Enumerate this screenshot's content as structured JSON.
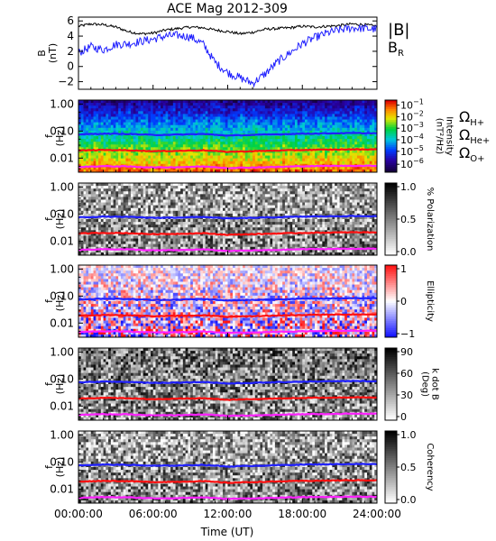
{
  "chart_data": {
    "title": "ACE Mag 2012-309",
    "xlabel": "Time (UT)",
    "x_ticks": [
      "00:00:00",
      "06:00:00",
      "12:00:00",
      "18:00:00",
      "24:00:00"
    ],
    "x_range_hours": [
      0,
      24
    ],
    "panels": [
      {
        "type": "line",
        "ylabel_lines": [
          "B",
          "(nT)"
        ],
        "ylim": [
          -3,
          6.5
        ],
        "y_ticks": [
          -2,
          0,
          2,
          4,
          6
        ],
        "legend": [
          {
            "label": "|B|",
            "color": "#000000"
          },
          {
            "label": "B",
            "sub": "R",
            "color": "#2020ff"
          }
        ],
        "series": [
          {
            "name": "|B|",
            "color": "#000000",
            "x": [
              0,
              1,
              2,
              3,
              4,
              5,
              6,
              7,
              8,
              9,
              10,
              11,
              12,
              13,
              14,
              15,
              16,
              17,
              18,
              19,
              20,
              21,
              22,
              23,
              24
            ],
            "y": [
              5.3,
              5.6,
              5.5,
              5.2,
              4.6,
              4.3,
              4.4,
              4.8,
              5.0,
              5.2,
              5.1,
              4.8,
              4.6,
              4.3,
              4.5,
              4.9,
              5.0,
              5.1,
              5.3,
              5.2,
              5.3,
              5.4,
              5.6,
              5.5,
              5.3
            ]
          },
          {
            "name": "B_R",
            "color": "#2020ff",
            "x": [
              0,
              1,
              2,
              3,
              4,
              5,
              6,
              7,
              8,
              9,
              10,
              11,
              12,
              13,
              14,
              15,
              16,
              17,
              18,
              19,
              20,
              21,
              22,
              23,
              24
            ],
            "y": [
              1.8,
              2.6,
              2.2,
              2.9,
              3.0,
              3.3,
              3.6,
              4.0,
              4.1,
              3.9,
              3.0,
              0.5,
              -0.8,
              -1.5,
              -2.2,
              -1.0,
              0.6,
              1.8,
              3.0,
              3.8,
              4.4,
              4.8,
              5.1,
              5.0,
              4.9
            ]
          }
        ]
      },
      {
        "type": "heatmap",
        "colormap": "rainbow",
        "ylabel_lines": [
          "f",
          "(Hz)"
        ],
        "y_ticks": [
          "1.00",
          "0.10",
          "0.01"
        ],
        "ylim_hz": [
          0.003,
          1.4
        ],
        "colorbar_label_lines": [
          "Intensity",
          "(nT²/Hz)"
        ],
        "colorbar_ticks": [
          {
            "base": "10",
            "exp": "−1",
            "pos": 0.07
          },
          {
            "base": "10",
            "exp": "−2",
            "pos": 0.23
          },
          {
            "base": "10",
            "exp": "−3",
            "pos": 0.39
          },
          {
            "base": "10",
            "exp": "−4",
            "pos": 0.55
          },
          {
            "base": "10",
            "exp": "−5",
            "pos": 0.71
          },
          {
            "base": "10",
            "exp": "−6",
            "pos": 0.89
          }
        ],
        "gyro_legend": [
          {
            "symbol": "Ω",
            "sub": "H+",
            "color": "#2020ff"
          },
          {
            "symbol": "Ω",
            "sub": "He+",
            "color": "#ff1010"
          },
          {
            "symbol": "Ω",
            "sub": "O+",
            "color": "#ff20ff"
          }
        ]
      },
      {
        "type": "heatmap",
        "colormap": "gray",
        "ylabel_lines": [
          "f",
          "(Hz)"
        ],
        "y_ticks": [
          "1.00",
          "0.10",
          "0.01"
        ],
        "colorbar_label_lines": [
          "% Polarization"
        ],
        "colorbar_ticks": [
          {
            "base": "1.0",
            "pos": 0.05
          },
          {
            "base": "0.5",
            "pos": 0.5
          },
          {
            "base": "0.0",
            "pos": 0.95
          }
        ]
      },
      {
        "type": "heatmap",
        "colormap": "bluewhitered",
        "ylabel_lines": [
          "f",
          "(Hz)"
        ],
        "y_ticks": [
          "1.00",
          "0.10",
          "0.01"
        ],
        "colorbar_label_lines": [
          "Ellipticity"
        ],
        "colorbar_ticks": [
          {
            "base": "1",
            "pos": 0.05
          },
          {
            "base": "0",
            "pos": 0.5
          },
          {
            "base": "−1",
            "pos": 0.95
          }
        ]
      },
      {
        "type": "heatmap",
        "colormap": "gray",
        "ylabel_lines": [
          "f",
          "(Hz)"
        ],
        "y_ticks": [
          "1.00",
          "0.10",
          "0.01"
        ],
        "colorbar_label_lines": [
          "k dot B",
          "(Deg)"
        ],
        "colorbar_ticks": [
          {
            "base": "90",
            "pos": 0.05
          },
          {
            "base": "60",
            "pos": 0.35
          },
          {
            "base": "30",
            "pos": 0.65
          },
          {
            "base": "0",
            "pos": 0.95
          }
        ]
      },
      {
        "type": "heatmap",
        "colormap": "gray",
        "ylabel_lines": [
          "f",
          "(Hz)"
        ],
        "y_ticks": [
          "1.00",
          "0.10",
          "0.01"
        ],
        "colorbar_label_lines": [
          "Coherency"
        ],
        "colorbar_ticks": [
          {
            "base": "1.0",
            "pos": 0.05
          },
          {
            "base": "0.5",
            "pos": 0.5
          },
          {
            "base": "0.0",
            "pos": 0.95
          }
        ]
      }
    ],
    "gyrofrequency_lines": [
      {
        "name": "ΩH+",
        "color": "#2020ff",
        "x": [
          0,
          2,
          4,
          6,
          8,
          10,
          12,
          14,
          16,
          18,
          20,
          22,
          24
        ],
        "y_hz": [
          0.075,
          0.08,
          0.078,
          0.072,
          0.074,
          0.078,
          0.068,
          0.072,
          0.076,
          0.08,
          0.082,
          0.084,
          0.083
        ]
      },
      {
        "name": "ΩHe+",
        "color": "#ff1010",
        "x": [
          0,
          2,
          4,
          6,
          8,
          10,
          12,
          14,
          16,
          18,
          20,
          22,
          24
        ],
        "y_hz": [
          0.019,
          0.02,
          0.0195,
          0.018,
          0.0185,
          0.0195,
          0.017,
          0.018,
          0.019,
          0.02,
          0.0205,
          0.021,
          0.021
        ]
      },
      {
        "name": "ΩO+",
        "color": "#ff20ff",
        "x": [
          0,
          2,
          4,
          6,
          8,
          10,
          12,
          14,
          16,
          18,
          20,
          22,
          24
        ],
        "y_hz": [
          0.0047,
          0.005,
          0.0049,
          0.0045,
          0.0046,
          0.0049,
          0.0043,
          0.0045,
          0.0047,
          0.005,
          0.0051,
          0.0052,
          0.0052
        ]
      }
    ]
  }
}
